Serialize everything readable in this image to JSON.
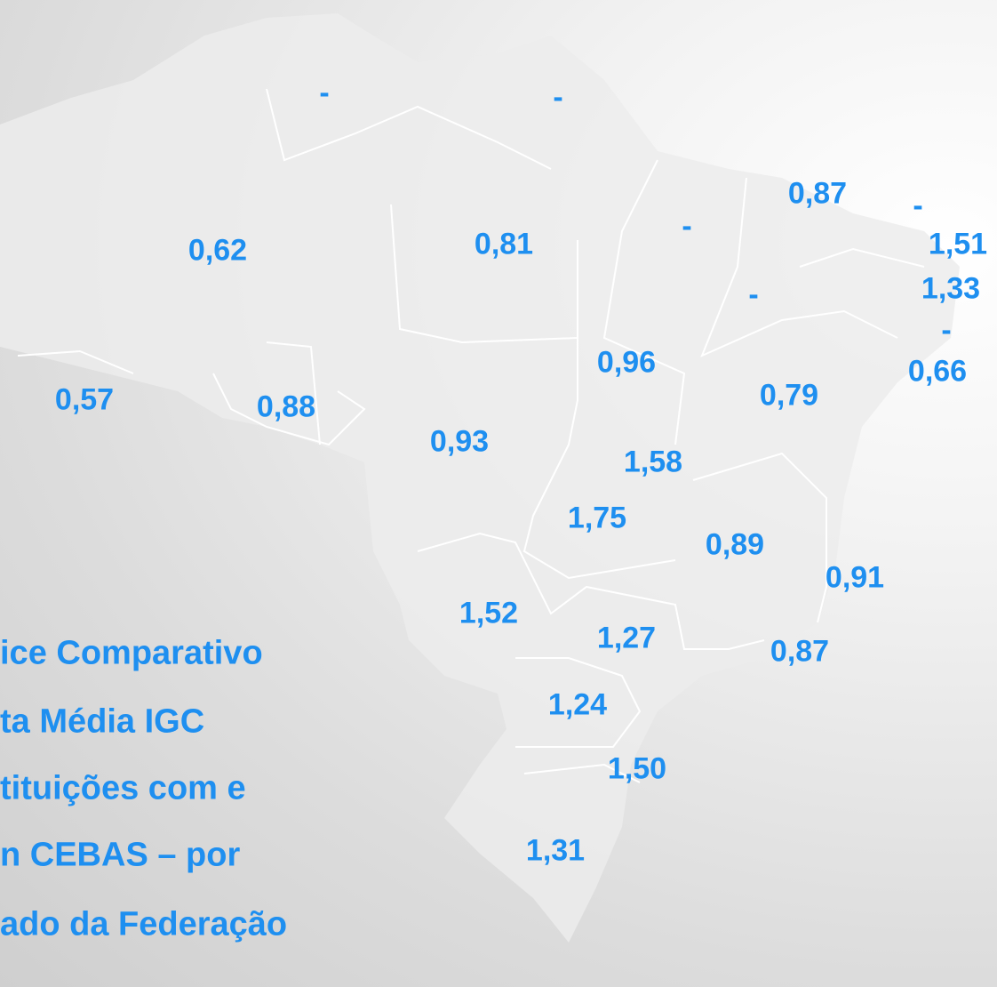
{
  "title_lines": [
    "ice Comparativo",
    "ta Média IGC",
    "tituições com e",
    "n CEBAS – por",
    "ado da Federação"
  ],
  "labels": [
    "-",
    "-",
    "0,62",
    "0,81",
    "-",
    "0,87",
    "-",
    "1,51",
    "1,33",
    "-",
    "-",
    "0,66",
    "0,96",
    "0,79",
    "0,57",
    "0,88",
    "0,93",
    "1,58",
    "1,75",
    "0,89",
    "0,91",
    "1,52",
    "1,27",
    "0,87",
    "1,24",
    "1,50",
    "1,31"
  ]
}
